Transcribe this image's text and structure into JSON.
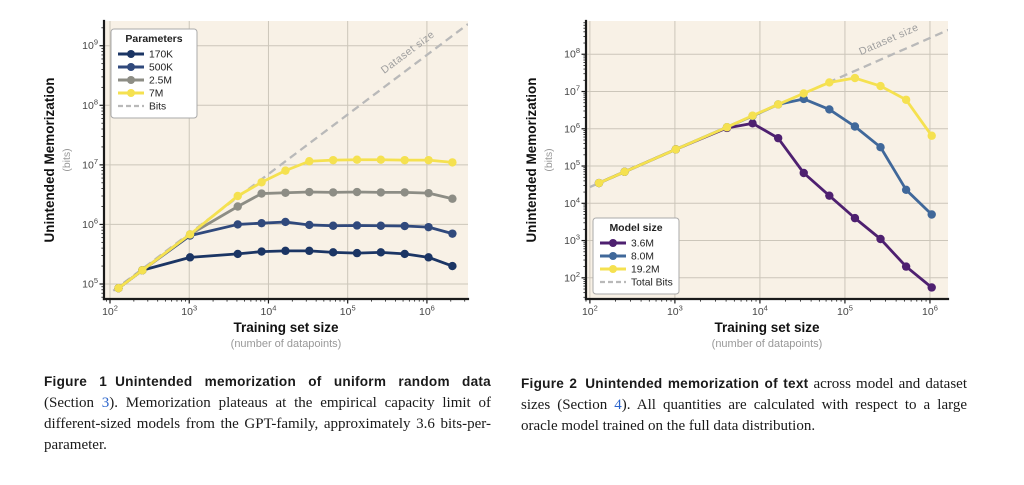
{
  "page": {
    "background": "#ffffff"
  },
  "palette": {
    "plot_bg": "#f8f1e6",
    "grid": "#ccc6ba",
    "spine": "#1a1a1a",
    "tick_label": "#454545",
    "axis_label": "#111111",
    "axis_sublabel": "#999999",
    "dashed_line": "#b9b9b9",
    "diag_label": "#9e9e9e",
    "legend_border": "#aaaaaa",
    "legend_text": "#222222",
    "link": "#2a64cc"
  },
  "chart_data": [
    {
      "id": "figure-1",
      "type": "line",
      "title": "",
      "xscale": "log",
      "yscale": "log",
      "xlabel": "Training set size",
      "xlabel_sub": "(number of datapoints)",
      "ylabel": "Unintended Memorization",
      "ylabel_sub": "(bits)",
      "annotation": "Dataset size",
      "legend_title": "Parameters",
      "legend_position": "upper-left",
      "grid": true,
      "xlim": [
        84,
        3300000
      ],
      "ylim": [
        56000,
        2600000000
      ],
      "x_ticks_exponents": [
        2,
        3,
        4,
        5,
        6
      ],
      "y_ticks_exponents": [
        5,
        6,
        7,
        8,
        9
      ],
      "x": [
        128,
        256,
        1024,
        4096,
        8192,
        16384,
        32768,
        65536,
        131072,
        262144,
        524288,
        1048576,
        2097152
      ],
      "series": [
        {
          "name": "170K",
          "color": "#1b3564",
          "values": [
            85000,
            170000,
            280000,
            320000,
            350000,
            360000,
            360000,
            340000,
            330000,
            340000,
            320000,
            280000,
            200000
          ]
        },
        {
          "name": "500K",
          "color": "#30497c",
          "values": [
            85000,
            170000,
            650000,
            1000000,
            1050000,
            1100000,
            980000,
            950000,
            960000,
            950000,
            940000,
            900000,
            700000
          ]
        },
        {
          "name": "2.5M",
          "color": "#8d8d85",
          "values": [
            85000,
            170000,
            680000,
            2000000,
            3300000,
            3400000,
            3500000,
            3450000,
            3500000,
            3450000,
            3450000,
            3350000,
            2700000
          ]
        },
        {
          "name": "7M",
          "color": "#f5e150",
          "values": [
            85000,
            170000,
            680000,
            3000000,
            5100000,
            8000000,
            11500000,
            12000000,
            12200000,
            12200000,
            12000000,
            12000000,
            11000000
          ]
        }
      ],
      "dashed_series": {
        "name": "Bits",
        "color": "#b9b9b9",
        "x": [
          110,
          3300000
        ],
        "values": [
          77000,
          2310000000
        ]
      }
    },
    {
      "id": "figure-2",
      "type": "line",
      "title": "",
      "xscale": "log",
      "yscale": "log",
      "xlabel": "Training set size",
      "xlabel_sub": "(number of datapoints)",
      "ylabel": "Unintended Memorization",
      "ylabel_sub": "(bits)",
      "annotation": "Dataset size",
      "legend_title": "Model size",
      "legend_position": "lower-left",
      "grid": true,
      "xlim": [
        90,
        1630000
      ],
      "ylim": [
        27,
        780000000
      ],
      "x_ticks_exponents": [
        2,
        3,
        4,
        5,
        6
      ],
      "y_ticks_exponents": [
        2,
        3,
        4,
        5,
        6,
        7,
        8
      ],
      "x": [
        128,
        256,
        1024,
        4096,
        8192,
        16384,
        32768,
        65536,
        131072,
        262144,
        524288,
        1048576
      ],
      "series": [
        {
          "name": "3.6M",
          "color": "#4e2070",
          "values": [
            35000,
            70000,
            280000,
            1050000,
            1400000,
            560000,
            65000,
            16000,
            4000,
            1100,
            200,
            55
          ]
        },
        {
          "name": "8.0M",
          "color": "#40689a",
          "values": [
            35000,
            70000,
            280000,
            1100000,
            2200000,
            4500000,
            6300000,
            3300000,
            1150000,
            320000,
            23000,
            5000
          ]
        },
        {
          "name": "19.2M",
          "color": "#f5e150",
          "values": [
            35000,
            70000,
            280000,
            1100000,
            2250000,
            4500000,
            8900000,
            17500000,
            23000000,
            14000000,
            6000000,
            650000
          ]
        }
      ],
      "dashed_series": {
        "name": "Total Bits",
        "color": "#b9b9b9",
        "x": [
          100,
          2000000
        ],
        "values": [
          27300,
          546000000
        ]
      }
    }
  ],
  "captions": [
    {
      "tag": "Figure 1",
      "bold": "Unintended memorization of uniform random data",
      "body_pre": " (Section ",
      "link": "3",
      "body_post": "). Memorization plateaus at the empirical capacity limit of different-sized models from the GPT-family, approximately 3.6 bits-per-parameter."
    },
    {
      "tag": "Figure 2",
      "bold": "Unintended memorization of text",
      "body_pre": " across model and dataset sizes (Section ",
      "link": "4",
      "body_post": "). All quantities are calculated with respect to a large oracle model trained on the full data distribution."
    }
  ]
}
